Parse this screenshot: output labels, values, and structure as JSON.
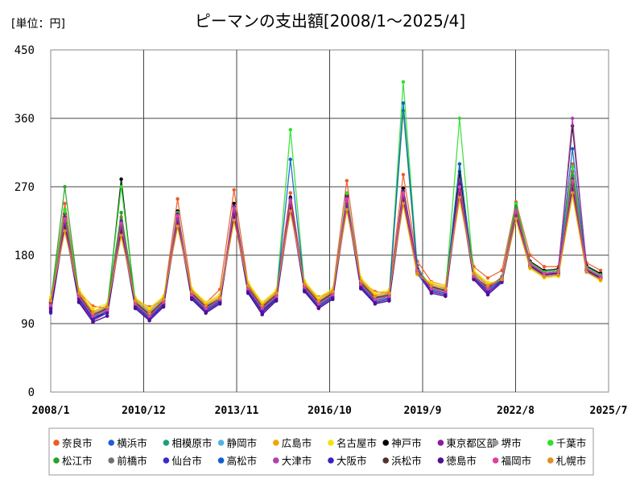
{
  "chart_data": {
    "type": "line",
    "title": "ピーマンの支出額[2008/1～2025/4]",
    "unit_label": "[単位：円]",
    "xlabel": "",
    "ylabel": "",
    "ylim": [
      0,
      450
    ],
    "y_ticks": [
      0,
      90,
      180,
      270,
      360,
      450
    ],
    "x_range": [
      "2008/1",
      "2025/7"
    ],
    "x_tick_labels": [
      "2008/1",
      "2010/12",
      "2013/11",
      "2016/10",
      "2019/9",
      "2022/8",
      "2025/7"
    ],
    "grid": true,
    "legend_position": "bottom",
    "series": [
      {
        "name": "奈良市",
        "color": "#f05a28",
        "values": [
          118,
          248,
          131,
          113,
          110,
          230,
          121,
          112,
          120,
          254,
          134,
          117,
          135,
          266,
          142,
          112,
          130,
          262,
          139,
          125,
          132,
          278,
          146,
          132,
          130,
          286,
          172,
          145,
          140,
          285,
          165,
          150,
          160,
          250,
          180,
          165,
          165,
          300,
          170,
          160
        ]
      },
      {
        "name": "横浜市",
        "color": "#1f5fd6",
        "values": [
          112,
          226,
          128,
          98,
          110,
          220,
          118,
          104,
          118,
          226,
          130,
          112,
          122,
          236,
          138,
          110,
          128,
          250,
          140,
          118,
          128,
          250,
          144,
          125,
          126,
          262,
          160,
          140,
          132,
          270,
          150,
          138,
          150,
          245,
          170,
          158,
          160,
          285,
          165,
          155
        ]
      },
      {
        "name": "相模原市",
        "color": "#20a070",
        "values": [
          114,
          222,
          126,
          100,
          108,
          218,
          116,
          100,
          118,
          230,
          128,
          110,
          120,
          240,
          134,
          108,
          126,
          252,
          136,
          116,
          130,
          252,
          140,
          122,
          128,
          258,
          162,
          136,
          134,
          268,
          154,
          136,
          152,
          238,
          168,
          156,
          158,
          272,
          160,
          152
        ]
      },
      {
        "name": "静岡市",
        "color": "#4fb3e8",
        "values": [
          120,
          216,
          130,
          104,
          112,
          212,
          120,
          106,
          122,
          224,
          132,
          114,
          124,
          232,
          140,
          114,
          130,
          244,
          142,
          120,
          132,
          246,
          146,
          126,
          130,
          254,
          158,
          140,
          136,
          262,
          156,
          140,
          150,
          234,
          166,
          154,
          156,
          268,
          162,
          150
        ]
      },
      {
        "name": "広島市",
        "color": "#f0a500",
        "values": [
          122,
          214,
          132,
          106,
          114,
          208,
          122,
          108,
          124,
          220,
          134,
          116,
          126,
          228,
          142,
          116,
          132,
          240,
          144,
          122,
          134,
          242,
          148,
          128,
          132,
          250,
          156,
          142,
          138,
          256,
          158,
          142,
          148,
          230,
          164,
          152,
          154,
          262,
          160,
          148
        ]
      },
      {
        "name": "名古屋市",
        "color": "#f5e000",
        "values": [
          125,
          210,
          135,
          110,
          116,
          204,
          124,
          110,
          126,
          216,
          136,
          118,
          128,
          224,
          144,
          118,
          134,
          236,
          146,
          124,
          136,
          238,
          150,
          130,
          134,
          246,
          154,
          144,
          140,
          252,
          160,
          144,
          146,
          226,
          162,
          150,
          152,
          258,
          158,
          146
        ]
      },
      {
        "name": "神戸市",
        "color": "#000000",
        "values": [
          110,
          234,
          124,
          96,
          106,
          280,
          114,
          98,
          116,
          238,
          126,
          108,
          120,
          248,
          136,
          106,
          124,
          256,
          138,
          114,
          126,
          258,
          142,
          120,
          124,
          268,
          164,
          134,
          130,
          290,
          152,
          134,
          150,
          242,
          172,
          160,
          162,
          350,
          166,
          156
        ]
      },
      {
        "name": "東京都区部",
        "color": "#8b1a9e",
        "values": [
          108,
          230,
          120,
          94,
          104,
          226,
          112,
          96,
          114,
          234,
          124,
          106,
          118,
          244,
          132,
          104,
          122,
          254,
          134,
          112,
          124,
          256,
          138,
          118,
          122,
          264,
          166,
          132,
          128,
          276,
          150,
          130,
          148,
          240,
          170,
          158,
          160,
          290,
          164,
          154
        ]
      },
      {
        "name": "堺市",
        "color": "#999999",
        "values": [
          116,
          224,
          128,
          102,
          110,
          216,
          118,
          102,
          120,
          228,
          130,
          112,
          122,
          236,
          138,
          112,
          128,
          248,
          140,
          118,
          130,
          250,
          144,
          124,
          128,
          258,
          160,
          138,
          134,
          266,
          152,
          138,
          150,
          236,
          168,
          156,
          158,
          276,
          162,
          150
        ]
      },
      {
        "name": "千葉市",
        "color": "#2ee02e",
        "values": [
          120,
          240,
          130,
          98,
          112,
          270,
          120,
          100,
          118,
          236,
          128,
          110,
          122,
          244,
          136,
          110,
          126,
          345,
          138,
          116,
          128,
          262,
          142,
          122,
          126,
          408,
          164,
          136,
          132,
          360,
          154,
          136,
          150,
          248,
          170,
          158,
          160,
          296,
          164,
          154
        ]
      },
      {
        "name": "松江市",
        "color": "#2aa02a",
        "values": [
          118,
          270,
          128,
          100,
          110,
          236,
          118,
          102,
          120,
          232,
          130,
          112,
          124,
          240,
          138,
          112,
          128,
          250,
          140,
          118,
          130,
          252,
          144,
          124,
          128,
          370,
          160,
          138,
          134,
          300,
          152,
          138,
          150,
          244,
          168,
          156,
          158,
          284,
          162,
          152
        ]
      },
      {
        "name": "前橋市",
        "color": "#707070",
        "values": [
          114,
          220,
          126,
          100,
          108,
          214,
          116,
          100,
          118,
          226,
          128,
          110,
          120,
          234,
          136,
          110,
          126,
          246,
          138,
          116,
          128,
          248,
          142,
          122,
          126,
          256,
          158,
          136,
          132,
          264,
          150,
          136,
          148,
          234,
          166,
          154,
          156,
          270,
          160,
          150
        ]
      },
      {
        "name": "仙台市",
        "color": "#3a2ad0",
        "values": [
          104,
          218,
          118,
          92,
          100,
          212,
          110,
          94,
          112,
          224,
          122,
          104,
          116,
          232,
          130,
          102,
          120,
          242,
          132,
          110,
          122,
          244,
          136,
          116,
          120,
          252,
          156,
          130,
          126,
          262,
          148,
          128,
          144,
          230,
          164,
          152,
          154,
          268,
          158,
          148
        ]
      },
      {
        "name": "高松市",
        "color": "#1060d0",
        "values": [
          112,
          228,
          124,
          98,
          106,
          222,
          114,
          98,
          116,
          232,
          126,
          108,
          120,
          242,
          134,
          108,
          124,
          306,
          136,
          114,
          126,
          254,
          140,
          120,
          124,
          380,
          162,
          134,
          130,
          300,
          150,
          134,
          148,
          238,
          168,
          156,
          158,
          320,
          162,
          152
        ]
      },
      {
        "name": "大津市",
        "color": "#b040b0",
        "values": [
          116,
          226,
          126,
          100,
          108,
          220,
          116,
          100,
          118,
          230,
          128,
          110,
          122,
          240,
          136,
          110,
          126,
          252,
          138,
          116,
          128,
          252,
          142,
          122,
          126,
          260,
          160,
          136,
          132,
          268,
          152,
          136,
          150,
          236,
          168,
          156,
          158,
          360,
          162,
          152
        ]
      },
      {
        "name": "大阪市",
        "color": "#4020c0",
        "values": [
          110,
          230,
          122,
          96,
          104,
          224,
          112,
          96,
          114,
          234,
          124,
          106,
          118,
          244,
          132,
          106,
          122,
          254,
          134,
          112,
          124,
          256,
          138,
          118,
          122,
          264,
          162,
          132,
          128,
          272,
          150,
          132,
          146,
          238,
          168,
          156,
          156,
          280,
          160,
          150
        ]
      },
      {
        "name": "浜松市",
        "color": "#503030",
        "values": [
          118,
          218,
          128,
          102,
          110,
          212,
          118,
          102,
          120,
          224,
          130,
          112,
          122,
          232,
          138,
          112,
          128,
          244,
          140,
          118,
          130,
          246,
          144,
          124,
          128,
          254,
          158,
          138,
          134,
          262,
          152,
          138,
          148,
          232,
          166,
          154,
          156,
          268,
          160,
          150
        ]
      },
      {
        "name": "徳島市",
        "color": "#50108a",
        "values": [
          106,
          222,
          118,
          92,
          100,
          216,
          110,
          94,
          112,
          228,
          122,
          104,
          116,
          236,
          130,
          102,
          120,
          246,
          132,
          110,
          122,
          248,
          136,
          116,
          120,
          256,
          160,
          130,
          126,
          266,
          148,
          128,
          146,
          232,
          166,
          154,
          156,
          272,
          160,
          150
        ]
      },
      {
        "name": "福岡市",
        "color": "#e040a0",
        "values": [
          114,
          228,
          126,
          100,
          108,
          222,
          116,
          100,
          118,
          232,
          128,
          110,
          122,
          242,
          136,
          110,
          126,
          252,
          138,
          116,
          128,
          254,
          142,
          122,
          126,
          262,
          160,
          136,
          132,
          270,
          152,
          136,
          150,
          238,
          168,
          156,
          158,
          278,
          162,
          152
        ]
      },
      {
        "name": "札幌市",
        "color": "#e09020",
        "values": [
          120,
          212,
          130,
          104,
          112,
          206,
          120,
          104,
          122,
          218,
          132,
          114,
          124,
          226,
          140,
          114,
          130,
          238,
          142,
          120,
          132,
          240,
          146,
          126,
          130,
          248,
          156,
          140,
          136,
          256,
          156,
          140,
          148,
          228,
          164,
          152,
          154,
          262,
          158,
          148
        ]
      }
    ]
  }
}
